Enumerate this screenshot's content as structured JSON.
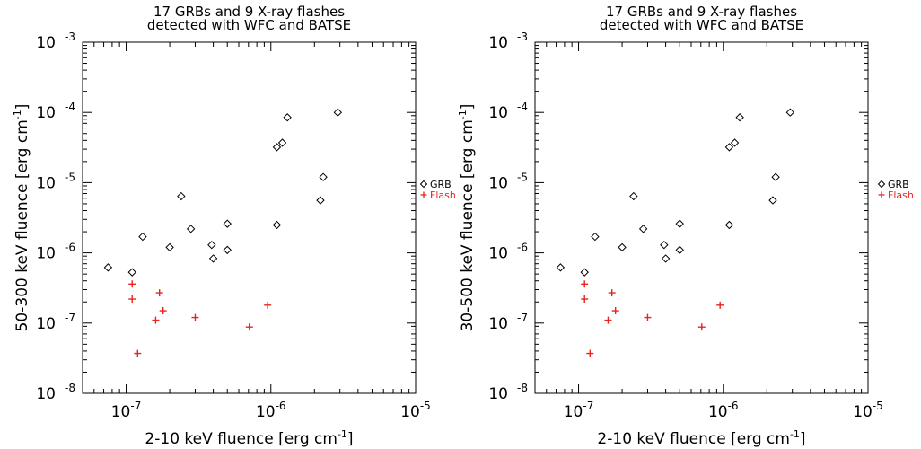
{
  "chart_data": [
    {
      "type": "scatter",
      "title_line1": "17 GRBs and 9 X-ray flashes",
      "title_line2": "detected with WFC and BATSE",
      "xlabel": "2-10 keV fluence [erg cm",
      "ylabel": "50-300 keV fluence [erg cm",
      "unit_exponent": "-1",
      "x_scale": "log",
      "y_scale": "log",
      "xlim": [
        5e-08,
        1e-05
      ],
      "ylim": [
        1e-08,
        0.001
      ],
      "x_ticks": [
        {
          "value": 1e-07,
          "base": "10",
          "exp": "-7"
        },
        {
          "value": 1e-06,
          "base": "10",
          "exp": "-6"
        },
        {
          "value": 1e-05,
          "base": "10",
          "exp": "-5"
        }
      ],
      "y_ticks": [
        {
          "value": 1e-08,
          "base": "10",
          "exp": "-8"
        },
        {
          "value": 1e-07,
          "base": "10",
          "exp": "-7"
        },
        {
          "value": 1e-06,
          "base": "10",
          "exp": "-6"
        },
        {
          "value": 1e-05,
          "base": "10",
          "exp": "-5"
        },
        {
          "value": 0.0001,
          "base": "10",
          "exp": "-4"
        },
        {
          "value": 0.001,
          "base": "10",
          "exp": "-3"
        }
      ],
      "legend_placement": "right",
      "series": [
        {
          "name": "GRB",
          "marker": "diamond",
          "color": "#000000",
          "points": [
            [
              7.5e-08,
              6.2e-07
            ],
            [
              1.1e-07,
              5.3e-07
            ],
            [
              1.3e-07,
              1.7e-06
            ],
            [
              2e-07,
              1.2e-06
            ],
            [
              2.4e-07,
              6.4e-06
            ],
            [
              2.8e-07,
              2.2e-06
            ],
            [
              3.9e-07,
              1.3e-06
            ],
            [
              4e-07,
              8.3e-07
            ],
            [
              5e-07,
              2.6e-06
            ],
            [
              5e-07,
              1.1e-06
            ],
            [
              1.1e-06,
              2.5e-06
            ],
            [
              1.1e-06,
              3.2e-05
            ],
            [
              1.2e-06,
              3.7e-05
            ],
            [
              1.3e-06,
              8.5e-05
            ],
            [
              2.2e-06,
              5.6e-06
            ],
            [
              2.3e-06,
              1.2e-05
            ],
            [
              2.9e-06,
              0.0001
            ]
          ]
        },
        {
          "name": "Flash",
          "marker": "plus",
          "color": "#e8231c",
          "points": [
            [
              1.1e-07,
              3.6e-07
            ],
            [
              1.1e-07,
              2.2e-07
            ],
            [
              1.2e-07,
              3.7e-08
            ],
            [
              1.6e-07,
              1.1e-07
            ],
            [
              1.7e-07,
              2.7e-07
            ],
            [
              1.8e-07,
              1.5e-07
            ],
            [
              3e-07,
              1.2e-07
            ],
            [
              7.1e-07,
              8.8e-08
            ],
            [
              9.5e-07,
              1.8e-07
            ]
          ]
        }
      ]
    },
    {
      "type": "scatter",
      "title_line1": "17 GRBs and 9 X-ray flashes",
      "title_line2": "detected with WFC and BATSE",
      "xlabel": "2-10 keV fluence [erg cm",
      "ylabel": "30-500 keV fluence [erg cm",
      "unit_exponent": "-1",
      "x_scale": "log",
      "y_scale": "log",
      "xlim": [
        5e-08,
        1e-05
      ],
      "ylim": [
        1e-08,
        0.001
      ],
      "x_ticks": [
        {
          "value": 1e-07,
          "base": "10",
          "exp": "-7"
        },
        {
          "value": 1e-06,
          "base": "10",
          "exp": "-6"
        },
        {
          "value": 1e-05,
          "base": "10",
          "exp": "-5"
        }
      ],
      "y_ticks": [
        {
          "value": 1e-08,
          "base": "10",
          "exp": "-8"
        },
        {
          "value": 1e-07,
          "base": "10",
          "exp": "-7"
        },
        {
          "value": 1e-06,
          "base": "10",
          "exp": "-6"
        },
        {
          "value": 1e-05,
          "base": "10",
          "exp": "-5"
        },
        {
          "value": 0.0001,
          "base": "10",
          "exp": "-4"
        },
        {
          "value": 0.001,
          "base": "10",
          "exp": "-3"
        }
      ],
      "legend_placement": "right",
      "series": [
        {
          "name": "GRB",
          "marker": "diamond",
          "color": "#000000",
          "points": [
            [
              7.5e-08,
              6.2e-07
            ],
            [
              1.1e-07,
              5.3e-07
            ],
            [
              1.3e-07,
              1.7e-06
            ],
            [
              2e-07,
              1.2e-06
            ],
            [
              2.4e-07,
              6.4e-06
            ],
            [
              2.8e-07,
              2.2e-06
            ],
            [
              3.9e-07,
              1.3e-06
            ],
            [
              4e-07,
              8.3e-07
            ],
            [
              5e-07,
              2.6e-06
            ],
            [
              5e-07,
              1.1e-06
            ],
            [
              1.1e-06,
              2.5e-06
            ],
            [
              1.1e-06,
              3.2e-05
            ],
            [
              1.2e-06,
              3.7e-05
            ],
            [
              1.3e-06,
              8.5e-05
            ],
            [
              2.2e-06,
              5.6e-06
            ],
            [
              2.3e-06,
              1.2e-05
            ],
            [
              2.9e-06,
              0.0001
            ]
          ]
        },
        {
          "name": "Flash",
          "marker": "plus",
          "color": "#e8231c",
          "points": [
            [
              1.1e-07,
              3.6e-07
            ],
            [
              1.1e-07,
              2.2e-07
            ],
            [
              1.2e-07,
              3.7e-08
            ],
            [
              1.6e-07,
              1.1e-07
            ],
            [
              1.7e-07,
              2.7e-07
            ],
            [
              1.8e-07,
              1.5e-07
            ],
            [
              3e-07,
              1.2e-07
            ],
            [
              7.1e-07,
              8.8e-08
            ],
            [
              9.5e-07,
              1.8e-07
            ]
          ]
        }
      ]
    }
  ]
}
